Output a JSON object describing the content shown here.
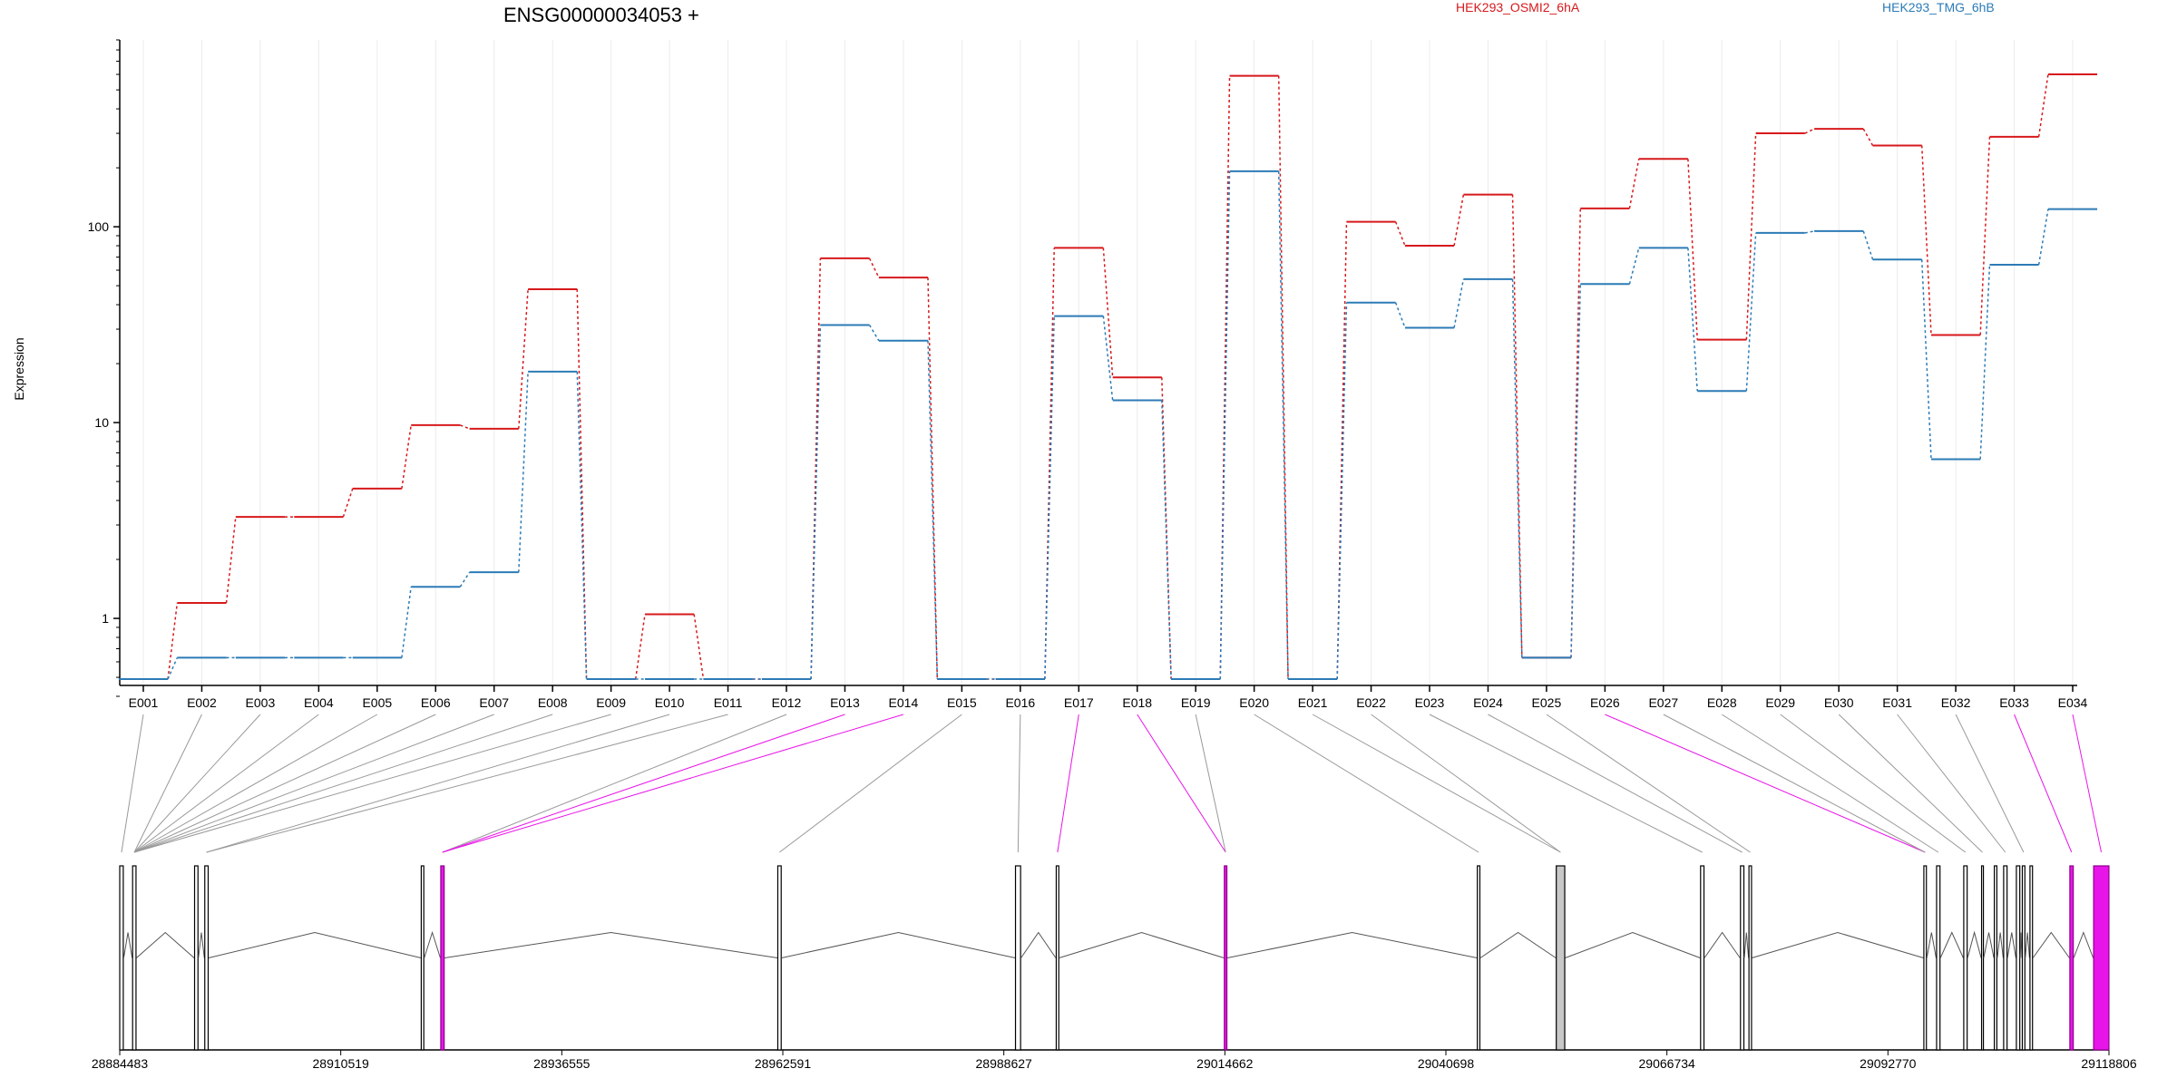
{
  "chart_data": {
    "type": "line",
    "title": "ENSG00000034053 +",
    "ylabel": "Expression",
    "yscale": "log",
    "ylim": [
      0.4,
      900
    ],
    "yticks": [
      "1",
      "10",
      "100"
    ],
    "grid": "vertical",
    "legend_position": "top",
    "categories": [
      "E001",
      "E002",
      "E003",
      "E004",
      "E005",
      "E006",
      "E007",
      "E008",
      "E009",
      "E010",
      "E011",
      "E012",
      "E013",
      "E014",
      "E015",
      "E016",
      "E017",
      "E018",
      "E019",
      "E020",
      "E021",
      "E022",
      "E023",
      "E024",
      "E025",
      "E026",
      "E027",
      "E028",
      "E029",
      "E030",
      "E031",
      "E032",
      "E033",
      "E034"
    ],
    "series": [
      {
        "name": "HEK293_OSMI2_6hA",
        "color": "#d7191c",
        "values": [
          0.49,
          1.2,
          3.3,
          3.3,
          4.6,
          9.7,
          9.3,
          48,
          0.49,
          1.05,
          0.49,
          0.49,
          69,
          55,
          0.49,
          0.49,
          78,
          17,
          0.49,
          590,
          0.49,
          106,
          80,
          146,
          0.63,
          124,
          222,
          26.5,
          300,
          316,
          260,
          28,
          288,
          600
        ]
      },
      {
        "name": "HEK293_TMG_6hB",
        "color": "#2c7bb6",
        "values": [
          0.49,
          0.63,
          0.63,
          0.63,
          0.63,
          1.45,
          1.72,
          18.2,
          0.49,
          0.49,
          0.49,
          0.49,
          31.5,
          26.2,
          0.49,
          0.49,
          35,
          13,
          0.49,
          192,
          0.49,
          41,
          30.5,
          54,
          0.63,
          51,
          78,
          14.5,
          93,
          95,
          68,
          6.5,
          64,
          123
        ]
      }
    ],
    "gene_model": {
      "genomic_ticks": [
        "28884483",
        "28910519",
        "28936555",
        "28962591",
        "28988627",
        "29014662",
        "29040698",
        "29066734",
        "29092770",
        "29118806"
      ],
      "exon_starts": [
        28884483,
        28886000,
        28893300,
        28894500,
        28920000,
        28922300,
        28962000,
        28990000,
        28994800,
        29014600,
        29044400,
        29053700,
        29070700,
        29075400,
        29076400,
        29097000,
        29098500,
        29101700,
        29103800,
        29105300,
        29106400,
        29107900,
        29108600,
        29109500,
        29114200,
        29117000
      ],
      "exon_ends": [
        28884900,
        28886400,
        28893700,
        28894900,
        28920300,
        28922700,
        28962400,
        28990600,
        28995100,
        29014900,
        29044700,
        29054700,
        29071100,
        29075800,
        29076700,
        29097300,
        29098900,
        29102100,
        29104000,
        29105600,
        29106800,
        29108300,
        29108900,
        29109800,
        29114600,
        29118800
      ],
      "highlighted_exons": [
        5,
        9,
        24,
        25
      ],
      "exon_map": [
        0,
        1,
        1,
        1,
        1,
        1,
        1,
        1,
        1,
        3,
        3,
        5,
        5,
        5,
        6,
        7,
        8,
        9,
        9,
        10,
        11,
        11,
        12,
        13,
        14,
        15,
        15,
        16,
        17,
        18,
        20,
        22,
        24,
        25
      ],
      "highlighted_bins": [
        12,
        13,
        16,
        17,
        25,
        32,
        33
      ],
      "highlight_color": "#e815e8",
      "exon_fill": "#c8c8c8"
    }
  }
}
